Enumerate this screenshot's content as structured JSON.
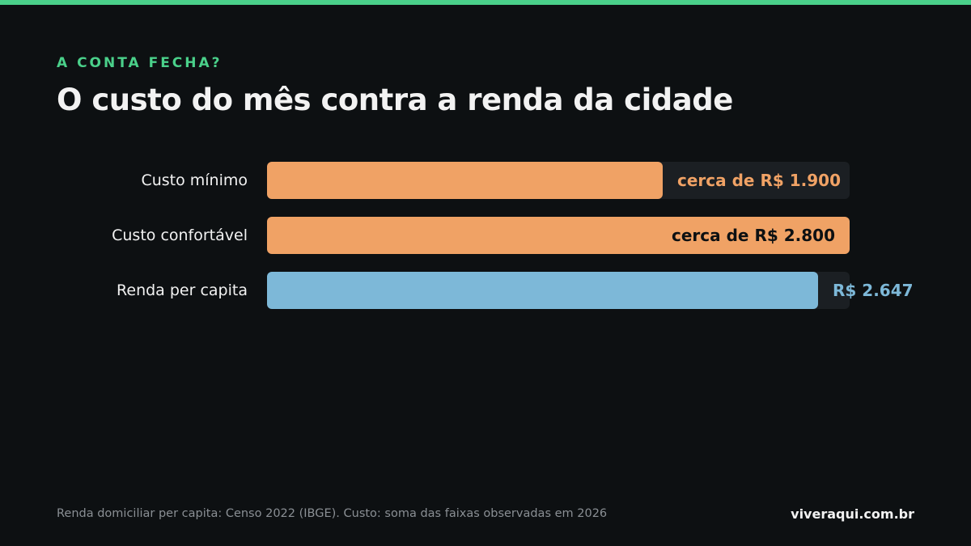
{
  "accent_color": "#4ad08a",
  "eyebrow": "A CONTA FECHA?",
  "title": "O custo do mês contra a renda da cidade",
  "chart_data": {
    "type": "bar",
    "orientation": "horizontal",
    "categories": [
      "Custo mínimo",
      "Custo confortável",
      "Renda per capita"
    ],
    "values": [
      1900,
      2800,
      2647
    ],
    "value_labels": [
      "cerca de R$ 1.900",
      "cerca de R$ 2.800",
      "R$ 2.647"
    ],
    "colors": [
      "#f0a265",
      "#f0a265",
      "#7db8d8"
    ],
    "xlim": [
      0,
      2800
    ],
    "grid": false,
    "legend": "none"
  },
  "footnote": "Renda domiciliar per capita: Censo 2022 (IBGE). Custo: soma das faixas observadas em 2026",
  "brand": "viveraqui.com.br"
}
